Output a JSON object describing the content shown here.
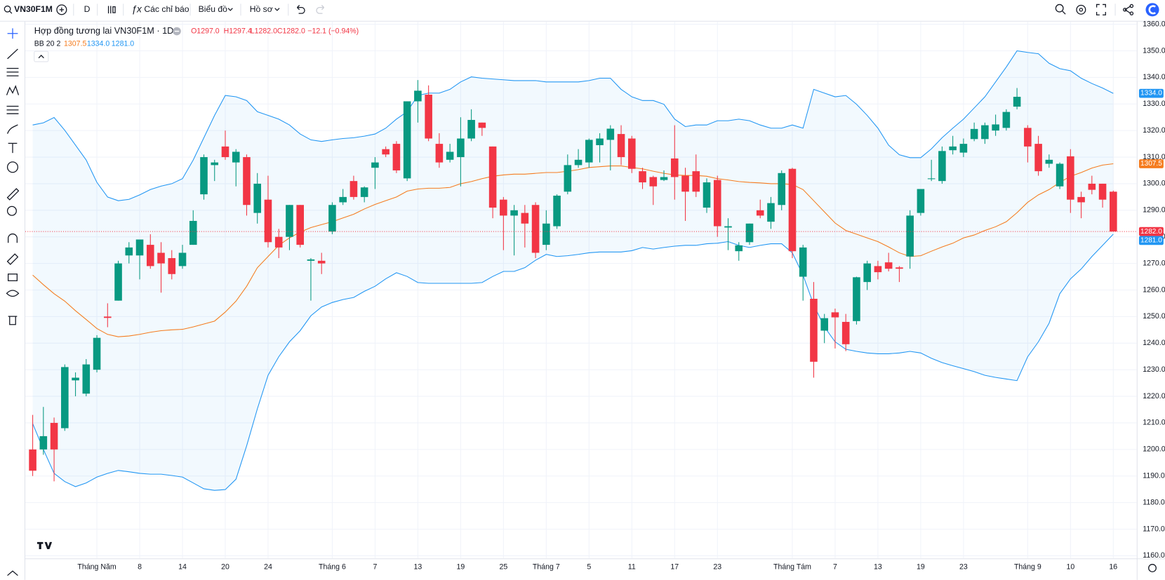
{
  "toolbar": {
    "symbol": "VN30F1M",
    "interval": "D",
    "items": [
      "Các chỉ báo",
      "Biểu đồ",
      "Hồ sơ"
    ]
  },
  "chart_data": {
    "type": "candlestick",
    "title": "Hợp đồng tương lai VN30F1M · 1D",
    "legend_ohlc": [
      "O1297.0",
      "H1297.4",
      "L1282.0",
      "C1282.0",
      "−12.1 (−0.94%)"
    ],
    "up_color": "#089981",
    "down_color": "#f23645",
    "categories": [
      null,
      null,
      null,
      null,
      null,
      null,
      "Tháng Năm",
      null,
      null,
      null,
      "8",
      null,
      null,
      null,
      "14",
      null,
      null,
      null,
      "20",
      null,
      null,
      null,
      "24",
      null,
      null,
      null,
      null,
      null,
      "Tháng 6",
      null,
      null,
      null,
      "7",
      null,
      null,
      null,
      "13",
      null,
      null,
      null,
      "19",
      null,
      null,
      null,
      "25",
      null,
      null,
      null,
      "Tháng 7",
      null,
      null,
      null,
      "5",
      null,
      null,
      null,
      "11",
      null,
      null,
      null,
      "17",
      null,
      null,
      null,
      "23",
      null,
      null,
      null,
      null,
      null,
      null,
      "Tháng Tám",
      null,
      null,
      null,
      "7",
      null,
      null,
      null,
      "13",
      null,
      null,
      null,
      "19",
      null,
      null,
      null,
      "23",
      null,
      null,
      null,
      null,
      null,
      "Tháng 9",
      null,
      null,
      null,
      "10",
      null,
      null,
      null,
      "16"
    ],
    "open": [
      1200,
      1200,
      1210,
      1208,
      1226,
      1221,
      1230,
      1250,
      1256,
      1273,
      1273,
      1277,
      1274,
      1272,
      1269,
      1277,
      1296,
      1307,
      1314,
      1308,
      1310,
      1289,
      1294,
      1280,
      1280,
      1292,
      1271,
      1271,
      1282,
      1293,
      1301,
      1295,
      1306,
      1313,
      1315,
      1302,
      1331,
      1333.5,
      1315,
      1309,
      1310,
      1317,
      1323,
      1314,
      1294,
      1288,
      1289,
      1292,
      1277,
      1284,
      1297,
      1307,
      1308,
      1314.5,
      1316.5,
      1318.7,
      1317,
      1304.7,
      1302.5,
      1301.4,
      1309.5,
      1303,
      1304.7,
      1291,
      1301.4,
      1283.5,
      1274.6,
      1278,
      1290,
      1285.7,
      1292,
      1305.6,
      1265,
      1256.7,
      1244.7,
      1251.6,
      1248,
      1248.3,
      1263,
      1269,
      1270.4,
      1268.5,
      1272.6,
      1289,
      1301.8,
      1301,
      1312.6,
      1311.7,
      1316.8,
      1316.8,
      1320,
      1321,
      1329,
      1321,
      1315,
      1307.5,
      1299,
      1310.3,
      1295,
      1300,
      1300,
      1297
    ],
    "high": [
      1213,
      1216,
      1212,
      1232,
      1229,
      1234,
      1243,
      1255,
      1271,
      1278,
      1279,
      1281,
      1278,
      1275,
      1277,
      1290,
      1311,
      1309,
      1320,
      1313,
      1311,
      1304,
      1303,
      1283,
      1292,
      1292,
      1272,
      1274,
      1293,
      1298,
      1303,
      1299,
      1310,
      1314,
      1316,
      1331,
      1339,
      1337,
      1319,
      1315,
      1325,
      1328,
      1323,
      1314,
      1295,
      1292,
      1292,
      1293,
      1290,
      1296,
      1311,
      1313,
      1317,
      1319,
      1322,
      1322,
      1318,
      1306,
      1303,
      1305,
      1322,
      1306,
      1311,
      1302,
      1303,
      1287,
      1278,
      1285,
      1294,
      1295,
      1305,
      1306,
      1277,
      1263,
      1251,
      1253,
      1251,
      1265,
      1271,
      1271,
      1274,
      1269,
      1290,
      1298,
      1309,
      1314,
      1318,
      1317,
      1323,
      1323,
      1326,
      1328,
      1336,
      1322,
      1318,
      1311,
      1308,
      1313,
      1297,
      1303,
      1300,
      1297.4
    ],
    "low": [
      1190,
      1198,
      1188,
      1207,
      1220,
      1220,
      1229,
      1246,
      1256,
      1270,
      1264,
      1268,
      1259,
      1264,
      1268,
      1277,
      1294,
      1301,
      1309,
      1299,
      1288,
      1285,
      1276,
      1272,
      1275,
      1276,
      1256,
      1266,
      1281,
      1292,
      1294,
      1293,
      1298,
      1310,
      1304,
      1301,
      1323,
      1316,
      1306,
      1308,
      1299,
      1316,
      1318,
      1287,
      1275,
      1273,
      1276,
      1272,
      1275,
      1283,
      1296,
      1306,
      1306,
      1308,
      1305,
      1307,
      1304,
      1298,
      1292,
      1301,
      1294,
      1286,
      1295,
      1289,
      1280,
      1275,
      1271,
      1277,
      1287,
      1283,
      1290,
      1272,
      1256,
      1227,
      1240,
      1238,
      1237,
      1247,
      1260,
      1264,
      1267,
      1263,
      1268,
      1288,
      1301,
      1300,
      1311,
      1310,
      1316,
      1315,
      1318,
      1320,
      1328,
      1308,
      1303,
      1306,
      1298,
      1289,
      1287,
      1296,
      1291,
      1282
    ],
    "close": [
      1192,
      1205,
      1200,
      1231,
      1227,
      1232,
      1242,
      1249.5,
      1270,
      1276,
      1279,
      1269,
      1270,
      1266,
      1274,
      1286,
      1310,
      1308,
      1310,
      1312,
      1292,
      1300,
      1278,
      1276,
      1292,
      1277,
      1271.5,
      1270,
      1292,
      1295,
      1295,
      1298.6,
      1308,
      1311,
      1305,
      1331,
      1335,
      1317,
      1308,
      1312,
      1317,
      1324,
      1321,
      1291,
      1288,
      1290,
      1285,
      1274,
      1285,
      1295.5,
      1307,
      1309,
      1316.5,
      1317,
      1320.7,
      1310,
      1305.6,
      1300.5,
      1299,
      1302.5,
      1302.5,
      1297,
      1297,
      1300.5,
      1284,
      1284,
      1276.8,
      1285,
      1288,
      1292.7,
      1304,
      1274.6,
      1276,
      1233,
      1249.4,
      1249.7,
      1239.6,
      1264.8,
      1270,
      1266.7,
      1268,
      1268,
      1288,
      1298,
      1302,
      1312.3,
      1314,
      1315,
      1320.6,
      1322,
      1322.3,
      1327,
      1332.7,
      1314,
      1304.7,
      1309,
      1307.5,
      1294,
      1293,
      1297.7,
      1294,
      1282
    ],
    "close_label": "1282.0",
    "indicator": {
      "label": "BB 20 2",
      "fill_color": "#2196f3",
      "bands": [
        {
          "color": "#f57c1f",
          "value_label": "1307.5",
          "values": [
            1265.6,
            1262,
            1258.6,
            1255.8,
            1252.2,
            1248.9,
            1245.5,
            1243.3,
            1242.4,
            1242.7,
            1243.3,
            1244.1,
            1244.7,
            1245,
            1245.2,
            1246.1,
            1247.2,
            1248.3,
            1251.7,
            1255.8,
            1261.4,
            1268.4,
            1272.6,
            1276.8,
            1279.6,
            1281.8,
            1283.5,
            1284.6,
            1285.7,
            1287.1,
            1288.5,
            1290.5,
            1292.2,
            1293.6,
            1295,
            1297.2,
            1298,
            1298.3,
            1298.3,
            1298.6,
            1300,
            1300.8,
            1301.9,
            1302.8,
            1303.3,
            1303.6,
            1303.6,
            1303.9,
            1304.2,
            1304.2,
            1304.7,
            1305.3,
            1306.1,
            1306.4,
            1306.7,
            1306.7,
            1306.1,
            1305.6,
            1304.7,
            1303.9,
            1303.3,
            1303.1,
            1303.1,
            1302.8,
            1301.9,
            1301.4,
            1300.8,
            1300.5,
            1300.3,
            1300,
            1300,
            1299.7,
            1297.8,
            1293.6,
            1289.4,
            1285.2,
            1282.4,
            1281,
            1279.6,
            1278.2,
            1276.2,
            1274,
            1272.6,
            1272.9,
            1274.6,
            1276.2,
            1277.6,
            1279.6,
            1280.7,
            1282.4,
            1283.8,
            1285.7,
            1289.1,
            1293,
            1295.8,
            1297.8,
            1300.5,
            1302.8,
            1304.2,
            1305.9,
            1307,
            1307.5
          ]
        },
        {
          "color": "#2196f3",
          "value_label": "1334.0",
          "values": [
            1322.1,
            1322.9,
            1324.9,
            1320.1,
            1314.5,
            1308.9,
            1300.5,
            1295,
            1293.6,
            1294.1,
            1295.8,
            1297.8,
            1299.1,
            1300,
            1301.9,
            1308.9,
            1317.3,
            1325.7,
            1333.2,
            1332.7,
            1331.3,
            1327.1,
            1325.7,
            1324.3,
            1322.1,
            1318.7,
            1316.5,
            1315.9,
            1316.5,
            1317,
            1317.3,
            1317.9,
            1318.7,
            1320.9,
            1324.3,
            1327.1,
            1333.2,
            1334.1,
            1334.1,
            1335.5,
            1338.3,
            1340.2,
            1339.7,
            1339.4,
            1339.1,
            1338.8,
            1338.8,
            1338.8,
            1338.3,
            1338.3,
            1338.3,
            1338.3,
            1338.8,
            1339.7,
            1339.7,
            1335.5,
            1332.7,
            1331.3,
            1331.3,
            1329.9,
            1324.3,
            1321.5,
            1322.1,
            1322.1,
            1323.7,
            1323.7,
            1324.3,
            1323.7,
            1322.1,
            1320.9,
            1320.9,
            1322.1,
            1320.9,
            1335.5,
            1334.1,
            1332.7,
            1333.2,
            1329.9,
            1325.7,
            1320.9,
            1314.5,
            1310.9,
            1309.8,
            1309.8,
            1313.1,
            1317.3,
            1320.9,
            1324.3,
            1328.5,
            1332.7,
            1338.3,
            1343.9,
            1350,
            1349.4,
            1348.9,
            1345.3,
            1343.3,
            1342.5,
            1339.7,
            1337.7,
            1336,
            1334
          ]
        },
        {
          "color": "#2196f3",
          "value_label": "1281.0",
          "values": [
            1209.7,
            1200,
            1191,
            1187.9,
            1186,
            1187.4,
            1189.6,
            1191,
            1192.1,
            1191.6,
            1191,
            1190.7,
            1190.7,
            1190.2,
            1189.6,
            1187.4,
            1185.2,
            1184.6,
            1184.9,
            1188.8,
            1201.4,
            1215.3,
            1227.9,
            1234.9,
            1240.5,
            1244.7,
            1250.3,
            1253.6,
            1255.3,
            1256.4,
            1257.2,
            1259.5,
            1261.4,
            1264.2,
            1266.5,
            1265.1,
            1262.8,
            1262.5,
            1262.5,
            1262.5,
            1262.5,
            1262.5,
            1262.8,
            1265.1,
            1267,
            1267,
            1268.4,
            1271.2,
            1273.4,
            1272.6,
            1272.9,
            1273.4,
            1274,
            1274.3,
            1274.3,
            1274.3,
            1274.8,
            1276,
            1275.4,
            1276,
            1276.5,
            1276.8,
            1276.8,
            1277.4,
            1277.6,
            1278.2,
            1276.8,
            1276,
            1276.8,
            1277.4,
            1277.4,
            1274,
            1265.6,
            1254.4,
            1246.1,
            1240.5,
            1237.7,
            1236.9,
            1236.3,
            1236,
            1236,
            1236.3,
            1236.9,
            1236.3,
            1234.3,
            1232.7,
            1231.5,
            1230.4,
            1229.3,
            1227.9,
            1227.1,
            1226.5,
            1225.9,
            1234.9,
            1240.5,
            1247.5,
            1258.6,
            1264.2,
            1267.9,
            1272.6,
            1276.8,
            1281
          ]
        }
      ]
    },
    "ylim": [
      1159,
      1361
    ],
    "yticks": [
      {
        "value": 1160,
        "label": "1160.0"
      },
      {
        "value": 1170,
        "label": "1170.0"
      },
      {
        "value": 1180,
        "label": "1180.0"
      },
      {
        "value": 1190,
        "label": "1190.0"
      },
      {
        "value": 1200,
        "label": "1200.0"
      },
      {
        "value": 1210,
        "label": "1210.0"
      },
      {
        "value": 1220,
        "label": "1220.0"
      },
      {
        "value": 1230,
        "label": "1230.0"
      },
      {
        "value": 1240,
        "label": "1240.0"
      },
      {
        "value": 1250,
        "label": "1250.0"
      },
      {
        "value": 1260,
        "label": "1260.0"
      },
      {
        "value": 1270,
        "label": "1270.0"
      },
      {
        "value": 1280,
        "label": "1280.0"
      },
      {
        "value": 1290,
        "label": "1290.0"
      },
      {
        "value": 1300,
        "label": "1300.0"
      },
      {
        "value": 1310,
        "label": "1310.0"
      },
      {
        "value": 1320,
        "label": "1320.0"
      },
      {
        "value": 1330,
        "label": "1330.0"
      },
      {
        "value": 1340,
        "label": "1340.0"
      },
      {
        "value": 1350,
        "label": "1350.0"
      },
      {
        "value": 1360,
        "label": "1360.0"
      }
    ],
    "grid": true
  }
}
